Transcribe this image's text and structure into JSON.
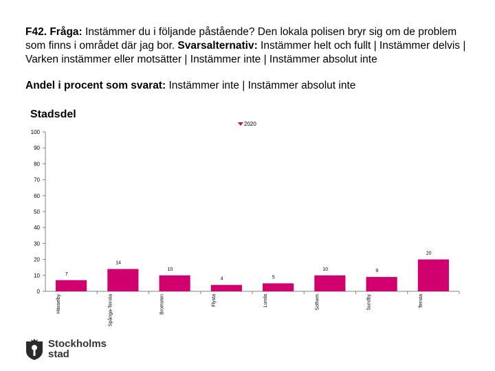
{
  "question": {
    "label": "F42. Fråga:",
    "text": " Instämmer du i följande påstående? Den lokala polisen bryr sig om de problem som finns i området där jag bor. ",
    "alt_label": "Svarsalternativ:",
    "alt_text": " Instämmer helt och fullt | Instämmer delvis | Varken instämmer eller motsätter | Instämmer inte | Instämmer absolut inte"
  },
  "share": {
    "label": "Andel i procent som svarat:",
    "text": " Instämmer inte | Instämmer absolut inte"
  },
  "section_title": "Stadsdel",
  "logo": {
    "line1": "Stockholms",
    "line2": "stad"
  },
  "colors": {
    "bar": "#d0006f",
    "axis": "#808080",
    "text": "#000000"
  },
  "chart_data": {
    "type": "bar",
    "title": "Stadsdel",
    "categories": [
      "Hässelby",
      "Spånga-Tensta",
      "Bromsten",
      "Flysta",
      "Lunda",
      "Solhem",
      "Sundby",
      "Tensta"
    ],
    "series": [
      {
        "name": "2020",
        "values": [
          7,
          14,
          10,
          4,
          5,
          10,
          9,
          20
        ]
      }
    ],
    "ylim": [
      0,
      100
    ],
    "yticks": [
      0,
      10,
      20,
      30,
      40,
      50,
      60,
      70,
      80,
      90,
      100
    ],
    "xlabel": "",
    "ylabel": "",
    "legend": "top-center"
  }
}
